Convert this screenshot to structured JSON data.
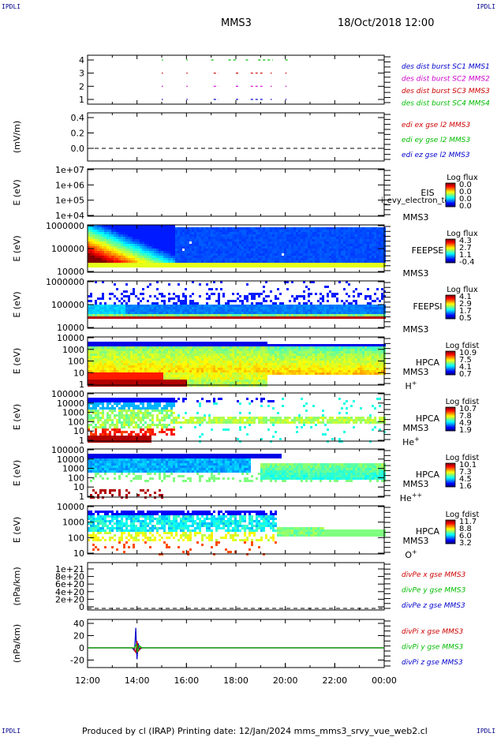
{
  "header": {
    "corner_label": "IPDLI",
    "spacecraft": "MMS3",
    "date_time": "18/Oct/2018 12:00"
  },
  "footer": {
    "text": "Produced by cl (IRAP)   Printing date: 12/Jan/2024   mms_mms3_srvy_vue_web2.cl"
  },
  "chart_data": {
    "type": "multi-panel",
    "x": {
      "ticks": [
        "12:00",
        "14:00",
        "16:00",
        "18:00",
        "20:00",
        "22:00",
        "00:00"
      ],
      "range_hours": [
        12,
        24
      ]
    },
    "panels": [
      {
        "id": "burst",
        "type": "event",
        "yticks": [
          "4",
          "3",
          "2",
          "1"
        ],
        "legend": [
          {
            "text": "des dist burst SC1 MMS1",
            "color": "#0000cc"
          },
          {
            "text": "des dist burst SC2 MMS2",
            "color": "#cc00cc"
          },
          {
            "text": "des dist burst SC3 MMS3",
            "color": "#cc0000"
          },
          {
            "text": "des dist burst SC4 MMS4",
            "color": "#00bb00"
          }
        ],
        "events_hours": [
          {
            "level": 4,
            "color": "#00bb00",
            "start": 15.0,
            "end": 15.05
          },
          {
            "level": 4,
            "color": "#00bb00",
            "start": 16.0,
            "end": 16.05
          },
          {
            "level": 4,
            "color": "#00bb00",
            "start": 17.0,
            "end": 17.1
          },
          {
            "level": 4,
            "color": "#00bb00",
            "start": 17.7,
            "end": 18.0
          },
          {
            "level": 4,
            "color": "#00bb00",
            "start": 18.4,
            "end": 18.5
          },
          {
            "level": 4,
            "color": "#00bb00",
            "start": 18.9,
            "end": 19.5
          },
          {
            "level": 4,
            "color": "#00bb00",
            "start": 20.0,
            "end": 20.1
          },
          {
            "level": 3,
            "color": "#cc0000",
            "start": 15.0,
            "end": 15.05
          },
          {
            "level": 3,
            "color": "#cc0000",
            "start": 16.0,
            "end": 16.05
          },
          {
            "level": 3,
            "color": "#cc0000",
            "start": 17.1,
            "end": 17.3
          },
          {
            "level": 3,
            "color": "#cc0000",
            "start": 18.0,
            "end": 18.1
          },
          {
            "level": 3,
            "color": "#cc0000",
            "start": 18.6,
            "end": 19.1
          },
          {
            "level": 3,
            "color": "#cc0000",
            "start": 19.4,
            "end": 19.45
          },
          {
            "level": 3,
            "color": "#cc0000",
            "start": 20.0,
            "end": 20.05
          },
          {
            "level": 2,
            "color": "#cc00cc",
            "start": 15.0,
            "end": 15.05
          },
          {
            "level": 2,
            "color": "#cc00cc",
            "start": 16.0,
            "end": 16.05
          },
          {
            "level": 2,
            "color": "#cc00cc",
            "start": 17.1,
            "end": 17.3
          },
          {
            "level": 2,
            "color": "#cc00cc",
            "start": 18.0,
            "end": 18.1
          },
          {
            "level": 2,
            "color": "#cc00cc",
            "start": 18.6,
            "end": 19.1
          },
          {
            "level": 2,
            "color": "#cc00cc",
            "start": 19.4,
            "end": 19.45
          },
          {
            "level": 2,
            "color": "#cc00cc",
            "start": 20.0,
            "end": 20.05
          },
          {
            "level": 1,
            "color": "#0000cc",
            "start": 15.0,
            "end": 15.05
          },
          {
            "level": 1,
            "color": "#0000cc",
            "start": 16.0,
            "end": 16.05
          },
          {
            "level": 1,
            "color": "#0000cc",
            "start": 17.1,
            "end": 17.3
          },
          {
            "level": 1,
            "color": "#0000cc",
            "start": 18.0,
            "end": 18.1
          },
          {
            "level": 1,
            "color": "#0000cc",
            "start": 18.6,
            "end": 19.1
          },
          {
            "level": 1,
            "color": "#0000cc",
            "start": 19.4,
            "end": 19.45
          },
          {
            "level": 1,
            "color": "#0000cc",
            "start": 20.0,
            "end": 20.05
          }
        ]
      },
      {
        "id": "edi",
        "type": "line",
        "ylabel": "(mV/m)",
        "yticks": [
          "0.4",
          "0.2",
          "0.0"
        ],
        "ylim": [
          -0.1,
          0.45
        ],
        "zero_line": 0.0,
        "legend": [
          {
            "text": "edi ex gse l2 MMS3",
            "color": "#cc0000"
          },
          {
            "text": "edi ey gse l2 MMS3",
            "color": "#00bb00"
          },
          {
            "text": "edi ez gse l2 MMS3",
            "color": "#0000cc"
          }
        ]
      },
      {
        "id": "eis",
        "type": "spectrogram",
        "ylabel": "E (eV)",
        "yticks": [
          "1e+07",
          "1e+06",
          "1e+05",
          "1e+04"
        ],
        "ylim_log": [
          4,
          7
        ],
        "labels": [
          "EIS",
          "MMS3"
        ],
        "overlay_text": "i_evy_electron_to",
        "cbar_title": "Log flux",
        "cbar_ticks": [
          "0.0",
          "0.0",
          "0.0",
          "0.0"
        ],
        "empty": true
      },
      {
        "id": "feepse",
        "type": "spectrogram",
        "ylabel": "E (eV)",
        "yticks": [
          "1000000",
          "100000",
          "10000"
        ],
        "ylim_log": [
          4,
          6
        ],
        "labels": [
          "FEEPSE",
          "MMS3"
        ],
        "cbar_title": "Log flux",
        "cbar_ticks": [
          "4.3",
          "2.7",
          "1.1",
          "-0.4"
        ]
      },
      {
        "id": "feepsi",
        "type": "spectrogram",
        "ylabel": "E (eV)",
        "yticks": [
          "1000000",
          "100000",
          "10000"
        ],
        "ylim_log": [
          4,
          6
        ],
        "labels": [
          "FEEPSI",
          "MMS3"
        ],
        "cbar_title": "Log flux",
        "cbar_ticks": [
          "4.1",
          "2.9",
          "1.7",
          "0.5"
        ]
      },
      {
        "id": "hpca_h",
        "type": "spectrogram",
        "ylabel": "E (eV)",
        "yticks": [
          "10000",
          "1000",
          "100",
          "10",
          "1"
        ],
        "ylim_log": [
          0,
          4.5
        ],
        "labels": [
          "HPCA",
          "MMS3"
        ],
        "species_base": "H",
        "species_sup": "+",
        "cbar_title": "Log fdist",
        "cbar_ticks": [
          "10.9",
          "7.5",
          "4.1",
          "0.7"
        ]
      },
      {
        "id": "hpca_he1",
        "type": "spectrogram",
        "ylabel": "E (eV)",
        "yticks": [
          "100000",
          "10000",
          "1000",
          "100",
          "10",
          "1"
        ],
        "ylim_log": [
          0,
          5
        ],
        "labels": [
          "HPCA",
          "MMS3"
        ],
        "species_base": "He",
        "species_sup": "+",
        "cbar_title": "Log fdist",
        "cbar_ticks": [
          "10.7",
          "7.8",
          "4.9",
          "1.9"
        ]
      },
      {
        "id": "hpca_he2",
        "type": "spectrogram",
        "ylabel": "E (eV)",
        "yticks": [
          "100000",
          "10000",
          "1000",
          "100",
          "10",
          "1"
        ],
        "ylim_log": [
          0,
          5
        ],
        "labels": [
          "HPCA",
          "MMS3"
        ],
        "species_base": "He",
        "species_sup": "++",
        "cbar_title": "Log fdist",
        "cbar_ticks": [
          "10.1",
          "7.3",
          "4.5",
          "1.6"
        ]
      },
      {
        "id": "hpca_o",
        "type": "spectrogram",
        "ylabel": "E (eV)",
        "yticks": [
          "10000",
          "1000",
          "100",
          "10"
        ],
        "ylim_log": [
          0.5,
          4.5
        ],
        "labels": [
          "HPCA",
          "MMS3"
        ],
        "species_base": "O",
        "species_sup": "+",
        "cbar_title": "Log fdist",
        "cbar_ticks": [
          "11.7",
          "8.8",
          "6.0",
          "3.2"
        ]
      },
      {
        "id": "divpe",
        "type": "line",
        "ylabel": "(nPa/km)",
        "yticks": [
          "1e+21",
          "8e+20",
          "6e+20",
          "4e+20",
          "2e+20",
          "0"
        ],
        "ylim": [
          -1e+20,
          1.1e+21
        ],
        "zero_line": 0,
        "legend": [
          {
            "text": "divPe x gse MMS3",
            "color": "#cc0000"
          },
          {
            "text": "divPe y gse MMS3",
            "color": "#00bb00"
          },
          {
            "text": "divPe z gse MMS3",
            "color": "#0000cc"
          }
        ]
      },
      {
        "id": "divpi",
        "type": "line",
        "ylabel": "(nPa/km)",
        "yticks": [
          "40",
          "20",
          "0",
          "-20"
        ],
        "ylim": [
          -35,
          45
        ],
        "zero_line": 0,
        "legend": [
          {
            "text": "divPi x gse MMS3",
            "color": "#cc0000"
          },
          {
            "text": "divPi y gse MMS3",
            "color": "#00bb00"
          },
          {
            "text": "divPi z gse MMS3",
            "color": "#0000cc"
          }
        ],
        "series": [
          {
            "name": "divPi z gse MMS3",
            "color": "#0000cc",
            "x": [
              12.0,
              13.8,
              13.9,
              13.95,
              14.0,
              14.05,
              14.1,
              14.2,
              24.0
            ],
            "y": [
              0,
              0,
              -5,
              35,
              -20,
              8,
              -3,
              0,
              0
            ]
          },
          {
            "name": "divPi x gse MMS3",
            "color": "#cc0000",
            "x": [
              12.0,
              13.85,
              13.95,
              14.0,
              14.05,
              14.15,
              24.0
            ],
            "y": [
              0,
              0,
              -8,
              12,
              -6,
              0,
              0
            ]
          },
          {
            "name": "divPi y gse MMS3",
            "color": "#00bb00",
            "x": [
              12.0,
              13.9,
              13.97,
              14.02,
              14.08,
              14.2,
              24.0
            ],
            "y": [
              0,
              0,
              6,
              -8,
              4,
              0,
              0
            ]
          }
        ]
      }
    ]
  }
}
